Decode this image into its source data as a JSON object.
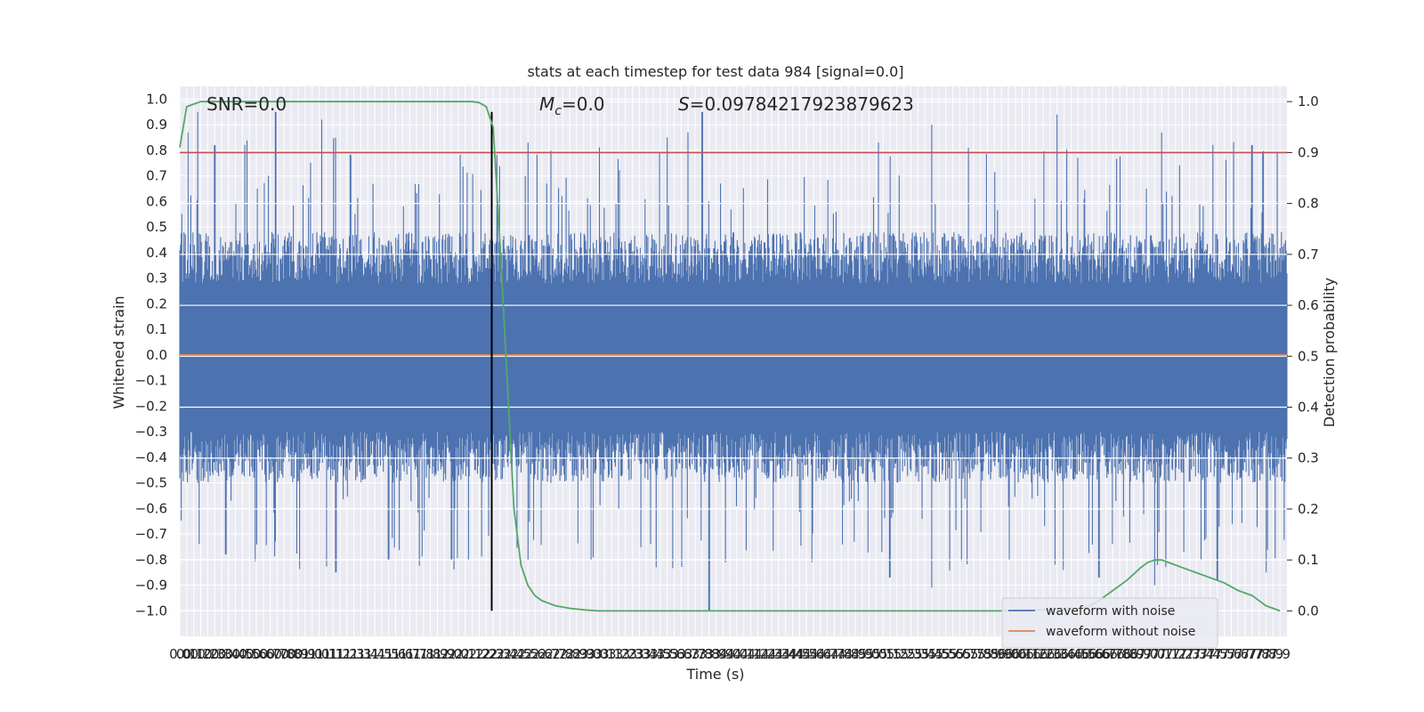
{
  "chart_data": {
    "type": "line",
    "title": "stats at each timestep for test data 984 [signal=0.0]",
    "xlabel": "Time (s)",
    "ylabel": "Whitened strain",
    "y2label": "Detection probability",
    "xlim": [
      0.0,
      7.95
    ],
    "ylim": [
      -1.1,
      1.05
    ],
    "y2lim": [
      -0.05,
      1.03
    ],
    "x_ticks": [
      0.0,
      0.05,
      0.1,
      0.15,
      0.2,
      0.25,
      0.3,
      0.35,
      0.4,
      0.45,
      0.5,
      0.55,
      0.6,
      0.65,
      0.7,
      0.75,
      0.8,
      0.85,
      0.9,
      0.95,
      1.0,
      1.05,
      1.1,
      1.15,
      1.2,
      1.25,
      1.3,
      1.35,
      1.4,
      1.45,
      1.5,
      1.55,
      1.6,
      1.65,
      1.7,
      1.75,
      1.8,
      1.85,
      1.9,
      1.95,
      2.0,
      2.05,
      2.1,
      2.15,
      2.2,
      2.25,
      2.3,
      2.35,
      2.4,
      2.45,
      2.5,
      2.55,
      2.6,
      2.65,
      2.7,
      2.75,
      2.8,
      2.85,
      2.9,
      2.95,
      3.0,
      3.05,
      3.1,
      3.15,
      3.2,
      3.25,
      3.3,
      3.35,
      3.4,
      3.45,
      3.5,
      3.55,
      3.6,
      3.65,
      3.7,
      3.75,
      3.8,
      3.85,
      3.9,
      3.95,
      4.0,
      4.05,
      4.1,
      4.15,
      4.2,
      4.25,
      4.3,
      4.35,
      4.4,
      4.45,
      4.5,
      4.55,
      4.6,
      4.65,
      4.7,
      4.75,
      4.8,
      4.85,
      4.9,
      4.95,
      5.0,
      5.05,
      5.1,
      5.15,
      5.2,
      5.25,
      5.3,
      5.35,
      5.4,
      5.45,
      5.5,
      5.55,
      5.6,
      5.65,
      5.7,
      5.75,
      5.8,
      5.85,
      5.9,
      5.95,
      6.0,
      6.05,
      6.1,
      6.15,
      6.2,
      6.25,
      6.3,
      6.35,
      6.4,
      6.45,
      6.5,
      6.55,
      6.6,
      6.65,
      6.7,
      6.75,
      6.8,
      6.85,
      6.9,
      6.95,
      7.0,
      7.05,
      7.1,
      7.15,
      7.2,
      7.25,
      7.3,
      7.35,
      7.4,
      7.45,
      7.5,
      7.55,
      7.6,
      7.65,
      7.7,
      7.75,
      7.8,
      7.85,
      7.9
    ],
    "x_tick_labels": [
      "0.0",
      "0.1",
      "0.1",
      "0.2",
      "0.2",
      "0.3",
      "0.3",
      "0.4",
      "0.4",
      "0.5",
      "0.5",
      "0.6",
      "0.6",
      "0.7",
      "0.7",
      "0.8",
      "0.8",
      "0.9",
      "0.9",
      "1.0",
      "1.0",
      "1.1",
      "1.1",
      "1.2",
      "1.2",
      "1.3",
      "1.3",
      "1.4",
      "1.4",
      "1.5",
      "1.5",
      "1.6",
      "1.6",
      "1.7",
      "1.7",
      "1.8",
      "1.8",
      "1.9",
      "1.9",
      "2.0",
      "2.0",
      "2.1",
      "2.1",
      "2.2",
      "2.2",
      "2.3",
      "2.3",
      "2.4",
      "2.4",
      "2.5",
      "2.5",
      "2.6",
      "2.6",
      "2.7",
      "2.7",
      "2.8",
      "2.8",
      "2.9",
      "2.9",
      "3.0",
      "3.0",
      "3.1",
      "3.1",
      "3.2",
      "3.2",
      "3.3",
      "3.3",
      "3.4",
      "3.4",
      "3.5",
      "3.5",
      "3.6",
      "3.6",
      "3.7",
      "3.7",
      "3.8",
      "3.8",
      "3.9",
      "3.9",
      "4.0",
      "4.0",
      "4.1",
      "4.1",
      "4.2",
      "4.2",
      "4.3",
      "4.3",
      "4.4",
      "4.4",
      "4.5",
      "4.5",
      "4.6",
      "4.6",
      "4.7",
      "4.7",
      "4.8",
      "4.8",
      "4.9",
      "4.9",
      "5.0",
      "5.0",
      "5.1",
      "5.1",
      "5.2",
      "5.2",
      "5.3",
      "5.3",
      "5.4",
      "5.4",
      "5.5",
      "5.5",
      "5.6",
      "5.6",
      "5.7",
      "5.7",
      "5.8",
      "5.8",
      "5.9",
      "5.9",
      "6.0",
      "6.0",
      "6.1",
      "6.1",
      "6.2",
      "6.2",
      "6.3",
      "6.3",
      "6.4",
      "6.4",
      "6.5",
      "6.5",
      "6.6",
      "6.6",
      "6.7",
      "6.7",
      "6.8",
      "6.8",
      "6.9",
      "6.9",
      "7.0",
      "7.0",
      "7.1",
      "7.1",
      "7.2",
      "7.2",
      "7.3",
      "7.3",
      "7.4",
      "7.4",
      "7.5",
      "7.5",
      "7.6",
      "7.6",
      "7.7",
      "7.7",
      "7.8",
      "7.8",
      "7.9",
      "7.9"
    ],
    "y_ticks": [
      1.0,
      0.9,
      0.8,
      0.7,
      0.6,
      0.5,
      0.4,
      0.3,
      0.2,
      0.1,
      0.0,
      -0.1,
      -0.2,
      -0.3,
      -0.4,
      -0.5,
      -0.6,
      -0.7,
      -0.8,
      -0.9,
      -1.0
    ],
    "y_tick_labels": [
      "1.0",
      "0.9",
      "0.8",
      "0.7",
      "0.6",
      "0.5",
      "0.4",
      "0.3",
      "0.2",
      "0.1",
      "0.0",
      "−0.1",
      "−0.2",
      "−0.3",
      "−0.4",
      "−0.5",
      "−0.6",
      "−0.7",
      "−0.8",
      "−0.9",
      "−1.0"
    ],
    "y2_ticks": [
      1.0,
      0.9,
      0.8,
      0.7,
      0.6,
      0.5,
      0.4,
      0.3,
      0.2,
      0.1,
      0.0
    ],
    "y2_tick_labels": [
      "1.0",
      "0.9",
      "0.8",
      "0.7",
      "0.6",
      "0.5",
      "0.4",
      "0.3",
      "0.2",
      "0.1",
      "0.0"
    ],
    "annotations": {
      "snr": "SNR=0.0",
      "mc_symbol": "M",
      "mc_sub": "c",
      "mc_value": "=0.0",
      "s_symbol": "S",
      "s_value": "=0.09784217923879623"
    },
    "series": [
      {
        "name": "waveform with noise",
        "axis": "left",
        "color": "#4c72b0",
        "kind": "dense noise",
        "duration": 7.95,
        "samples_shown": 1600,
        "approx_envelope": {
          "upper_typical": 0.4,
          "lower_typical": -0.42,
          "max": 0.95,
          "min": -1.0
        },
        "notable_peaks": [
          [
            0.06,
            0.87
          ],
          [
            0.13,
            0.95
          ],
          [
            0.25,
            0.82
          ],
          [
            0.69,
            0.95
          ],
          [
            1.02,
            0.92
          ],
          [
            2.5,
            0.83
          ],
          [
            3.5,
            0.85
          ],
          [
            3.65,
            0.87
          ],
          [
            3.75,
            0.95
          ],
          [
            5.4,
            0.9
          ],
          [
            6.3,
            0.94
          ],
          [
            7.05,
            0.87
          ],
          [
            7.7,
            0.82
          ],
          [
            7.88,
            0.79
          ]
        ],
        "notable_troughs": [
          [
            0.33,
            -0.78
          ],
          [
            1.12,
            -0.85
          ],
          [
            1.5,
            -0.8
          ],
          [
            1.95,
            -0.8
          ],
          [
            2.5,
            -0.8
          ],
          [
            3.42,
            -0.83
          ],
          [
            3.8,
            -1.0
          ],
          [
            5.1,
            -0.87
          ],
          [
            5.4,
            -0.91
          ],
          [
            6.6,
            -0.87
          ],
          [
            7.0,
            -0.9
          ],
          [
            7.45,
            -0.88
          ],
          [
            7.8,
            -0.85
          ]
        ]
      },
      {
        "name": "waveform without noise",
        "axis": "left",
        "color": "#dd8452",
        "x": [
          0.0,
          7.95
        ],
        "values": [
          0.0,
          0.0
        ]
      },
      {
        "name": "",
        "axis": "right",
        "color": "#55a868",
        "x": [
          0.0,
          0.05,
          0.1,
          0.15,
          0.2,
          0.3,
          0.5,
          1.0,
          1.5,
          1.9,
          2.0,
          2.1,
          2.15,
          2.2,
          2.25,
          2.3,
          2.35,
          2.4,
          2.45,
          2.5,
          2.55,
          2.6,
          2.7,
          2.8,
          2.9,
          3.0,
          3.2,
          3.5,
          4.0,
          5.0,
          6.0,
          6.5,
          6.6,
          6.7,
          6.8,
          6.9,
          6.95,
          7.0,
          7.05,
          7.1,
          7.2,
          7.3,
          7.4,
          7.5,
          7.6,
          7.7,
          7.75,
          7.8,
          7.85,
          7.9
        ],
        "values": [
          0.91,
          0.99,
          0.995,
          1.0,
          1.0,
          1.0,
          1.0,
          1.0,
          1.0,
          1.0,
          1.0,
          1.0,
          0.998,
          0.99,
          0.95,
          0.72,
          0.46,
          0.2,
          0.09,
          0.05,
          0.03,
          0.02,
          0.01,
          0.005,
          0.002,
          0.0,
          0.0,
          0.0,
          0.0,
          0.0,
          0.0,
          0.005,
          0.02,
          0.04,
          0.06,
          0.085,
          0.095,
          0.1,
          0.1,
          0.095,
          0.085,
          0.075,
          0.065,
          0.055,
          0.04,
          0.03,
          0.02,
          0.01,
          0.005,
          0.0
        ]
      }
    ],
    "hlines": [
      {
        "axis": "right",
        "y": 0.9,
        "color": "#c44e52"
      }
    ],
    "vlines": [
      {
        "x": 2.24,
        "ymin": -1.0,
        "ymax": 0.95,
        "color": "#000000"
      }
    ],
    "grid": true,
    "legend": {
      "placement": "lower-right",
      "entries": [
        {
          "label": "waveform with noise",
          "color": "#4c72b0"
        },
        {
          "label": "waveform without noise",
          "color": "#dd8452"
        }
      ]
    },
    "colors": {
      "plot_bg": "#eaeaf2",
      "grid": "#ffffff",
      "text": "#262626"
    }
  }
}
